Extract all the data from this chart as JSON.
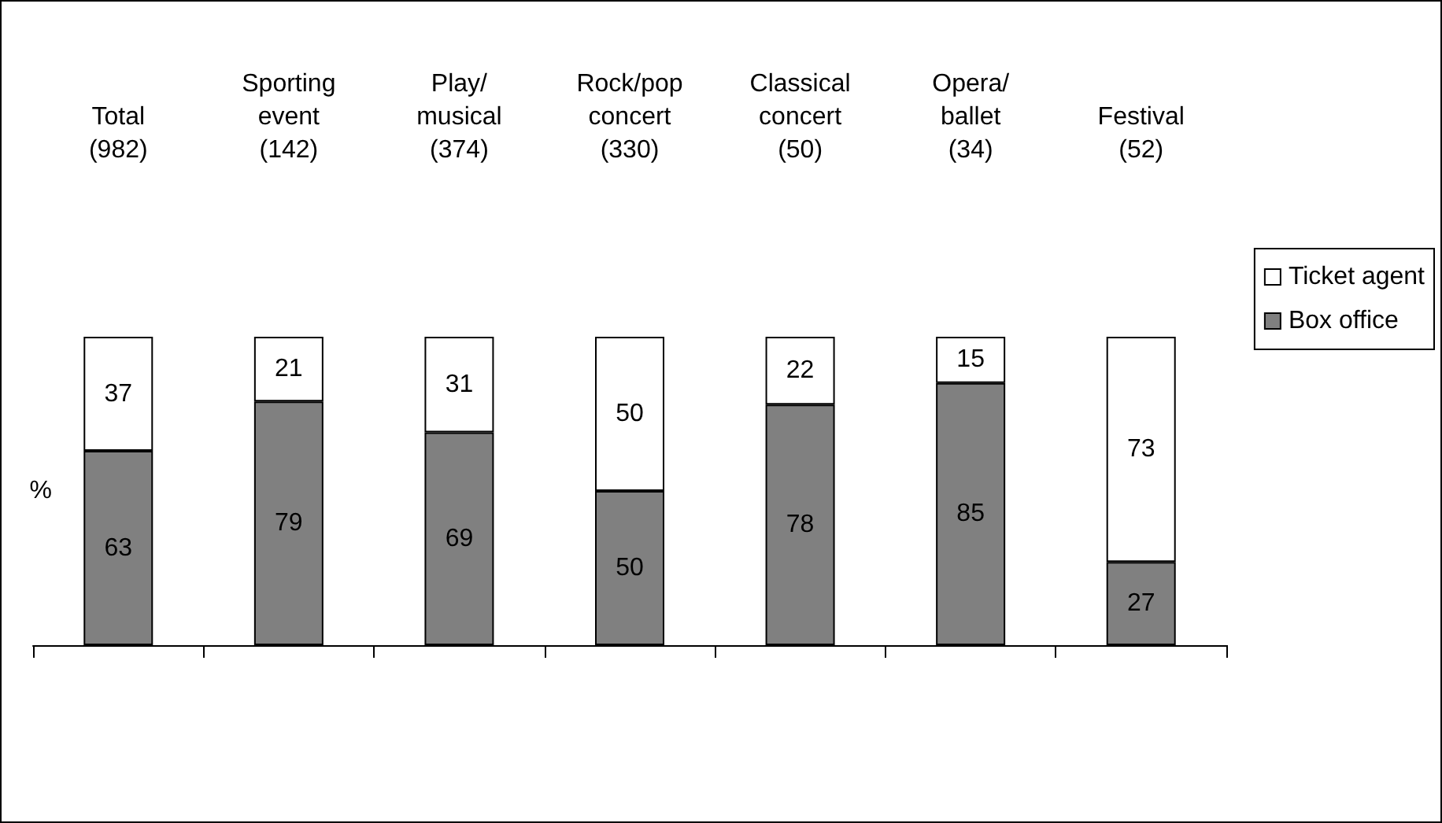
{
  "chart_data": {
    "type": "bar",
    "stacked": true,
    "ylabel": "%",
    "categories": [
      "Total\n(982)",
      "Sporting\nevent\n(142)",
      "Play/\nmusical\n(374)",
      "Rock/pop\nconcert\n(330)",
      "Classical\nconcert\n(50)",
      "Opera/\nballet\n(34)",
      "Festival\n(52)"
    ],
    "series": [
      {
        "name": "Box office",
        "color": "#808080",
        "values": [
          63,
          79,
          69,
          50,
          78,
          85,
          27
        ]
      },
      {
        "name": "Ticket agent",
        "color": "#ffffff",
        "values": [
          37,
          21,
          31,
          50,
          22,
          15,
          73
        ]
      }
    ],
    "ylim": [
      0,
      100
    ],
    "tick_labels": "x",
    "data_labels": true,
    "legend": "right",
    "grid": false
  }
}
